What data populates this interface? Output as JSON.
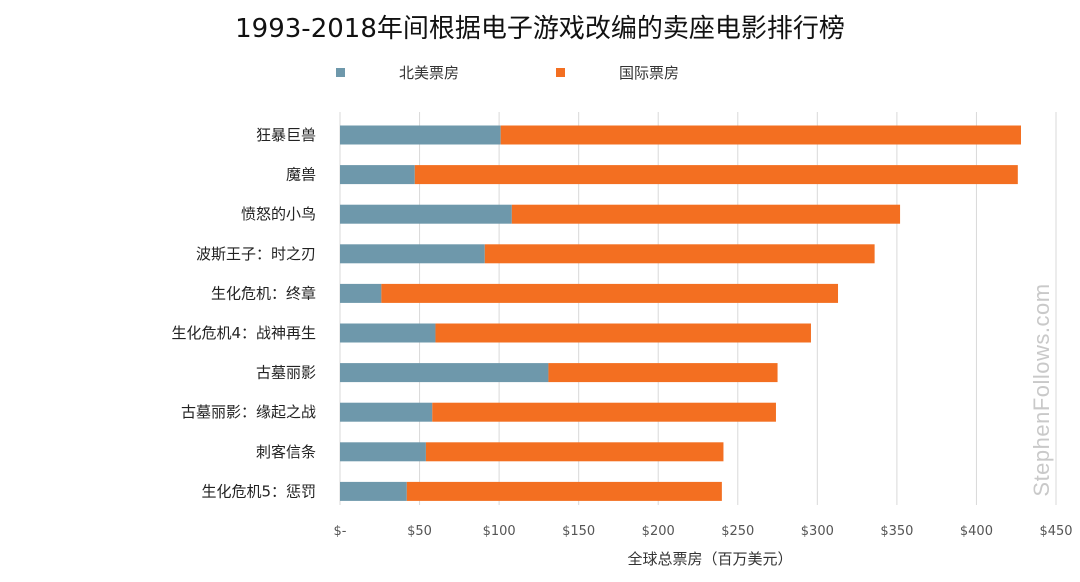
{
  "chart_data": {
    "type": "bar",
    "orientation": "horizontal",
    "stacked": true,
    "title": "1993-2018年间根据电子游戏改编的卖座电影排行榜",
    "categories": [
      "狂暴巨兽",
      "魔兽",
      "愤怒的小鸟",
      "波斯王子：时之刃",
      "生化危机：终章",
      "生化危机4：战神再生",
      "古墓丽影",
      "古墓丽影：缘起之战",
      "刺客信条",
      "生化危机5：惩罚"
    ],
    "series": [
      {
        "name": "北美票房",
        "color": "#6e98ab",
        "values": [
          101,
          47,
          108,
          91,
          26,
          60,
          131,
          58,
          54,
          42
        ]
      },
      {
        "name": "国际票房",
        "color": "#f36f21",
        "values": [
          327,
          379,
          244,
          245,
          287,
          236,
          144,
          216,
          187,
          198
        ]
      }
    ],
    "xlabel": "全球总票房（百万美元）",
    "ylabel": "",
    "xlim": [
      0,
      450
    ],
    "x_ticks": [
      0,
      50,
      100,
      150,
      200,
      250,
      300,
      350,
      400,
      450
    ],
    "x_tick_labels": [
      "$-",
      "$50",
      "$100",
      "$150",
      "$200",
      "$250",
      "$300",
      "$350",
      "$400",
      "$450"
    ],
    "grid": "vertical",
    "legend_position": "top"
  },
  "watermark": "StephenFollows.com"
}
